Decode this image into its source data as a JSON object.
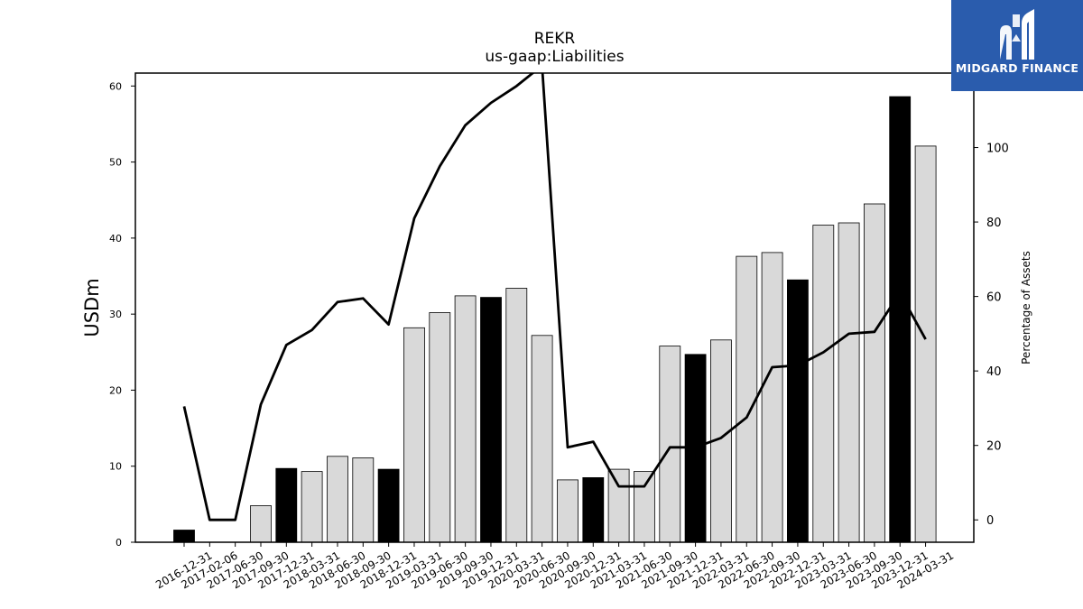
{
  "chart_data": {
    "type": "bar",
    "title": "REKR",
    "subtitle": "us-gaap:Liabilities",
    "ylabel": "USDm",
    "y2label": "Percentage of Assets",
    "ylim": [
      0,
      61.7
    ],
    "y2lim": [
      -6,
      120
    ],
    "yticks": [
      0,
      10,
      20,
      30,
      40,
      50,
      60
    ],
    "y2ticks": [
      0,
      20,
      40,
      60,
      80,
      100
    ],
    "categories": [
      "2016-12-31",
      "2017-02-06",
      "2017-06-30",
      "2017-09-30",
      "2017-12-31",
      "2018-03-31",
      "2018-06-30",
      "2018-09-30",
      "2018-12-31",
      "2019-03-31",
      "2019-06-30",
      "2019-09-30",
      "2019-12-31",
      "2020-03-31",
      "2020-06-30",
      "2020-09-30",
      "2020-12-31",
      "2021-03-31",
      "2021-06-30",
      "2021-09-30",
      "2021-12-31",
      "2022-03-31",
      "2022-06-30",
      "2022-09-30",
      "2022-12-31",
      "2023-03-31",
      "2023-06-30",
      "2023-09-30",
      "2023-12-31",
      "2024-03-31"
    ],
    "series": [
      {
        "type": "bar",
        "values": [
          1.6,
          0,
          0,
          4.8,
          9.7,
          9.3,
          11.3,
          11.1,
          9.6,
          28.2,
          30.2,
          32.4,
          32.2,
          33.4,
          27.2,
          8.2,
          8.5,
          9.6,
          9.3,
          25.8,
          24.7,
          26.6,
          37.6,
          38.1,
          34.5,
          41.7,
          42.0,
          44.5,
          58.6,
          52.1
        ],
        "highlight": [
          true,
          false,
          false,
          false,
          true,
          false,
          false,
          false,
          true,
          false,
          false,
          false,
          true,
          false,
          false,
          false,
          true,
          false,
          false,
          false,
          true,
          false,
          false,
          false,
          true,
          false,
          false,
          false,
          true,
          false
        ],
        "highlight_color": "#000000",
        "color": "#d9d9d9"
      },
      {
        "type": "line",
        "axis": "y2",
        "color": "#000000",
        "values": [
          30.5,
          0,
          0,
          31,
          47,
          51,
          58.5,
          59.5,
          52.5,
          81,
          95,
          106,
          112,
          116.5,
          122,
          19.5,
          21,
          9,
          9,
          19.5,
          19.5,
          22,
          27.5,
          41,
          41.5,
          45,
          50,
          50.5,
          61,
          48.5
        ]
      }
    ]
  },
  "logo": {
    "text": "MIDGARD FINANCE",
    "icon": "midgard-m-logo-icon",
    "background": "#2a5cad"
  }
}
